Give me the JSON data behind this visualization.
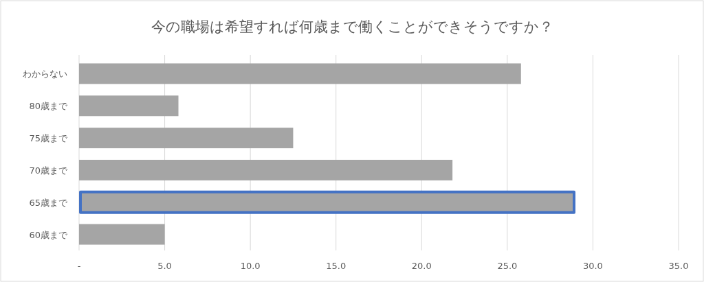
{
  "chart_data": {
    "type": "bar",
    "orientation": "horizontal",
    "title": "今の職場は希望すれば何歳まで働くことができそうですか？",
    "categories": [
      "わからない",
      "80歳まで",
      "75歳まで",
      "70歳まで",
      "65歳まで",
      "60歳まで"
    ],
    "values": [
      25.8,
      5.8,
      12.5,
      21.8,
      28.9,
      5.0
    ],
    "color": "#a5a5a5",
    "xlim": [
      0,
      35
    ],
    "xticks": [
      {
        "value": 0,
        "label": "-"
      },
      {
        "value": 5,
        "label": "5.0"
      },
      {
        "value": 10,
        "label": "10.0"
      },
      {
        "value": 15,
        "label": "15.0"
      },
      {
        "value": 20,
        "label": "20.0"
      },
      {
        "value": 25,
        "label": "25.0"
      },
      {
        "value": 30,
        "label": "30.0"
      },
      {
        "value": 35,
        "label": "35.0"
      }
    ],
    "grid": "x"
  }
}
